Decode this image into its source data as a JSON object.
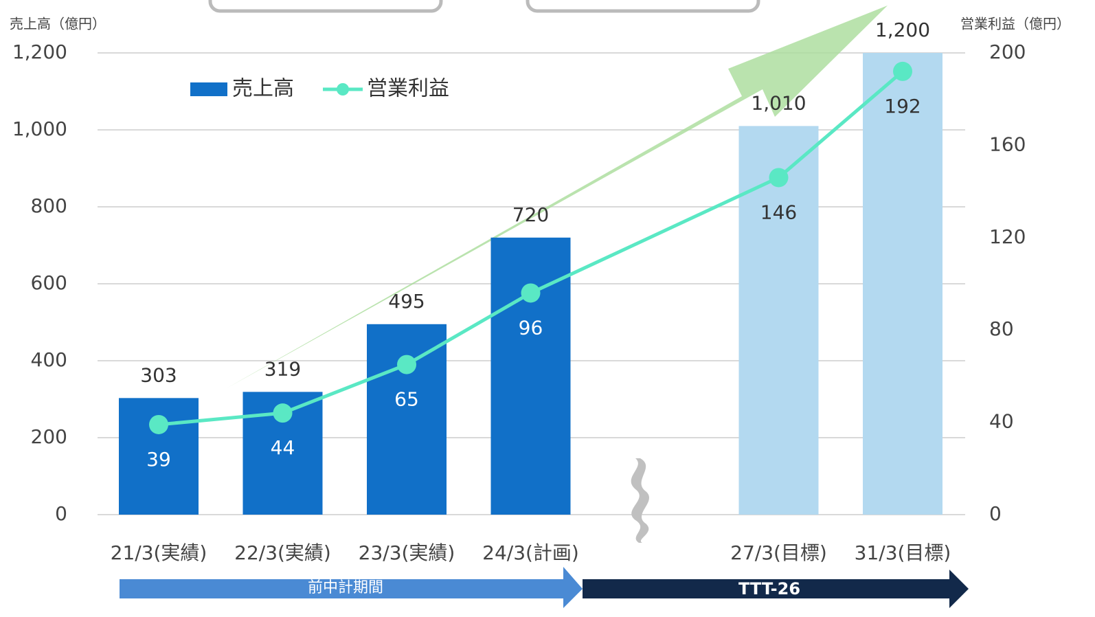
{
  "chart_data": {
    "type": "bar_line",
    "y_label": "売上高（億円）",
    "y2_label": "営業利益（億円）",
    "categories": [
      "21/3(実績)",
      "22/3(実績)",
      "23/3(実績)",
      "24/3(計画)",
      "27/3(目標)",
      "31/3(目標)"
    ],
    "series": [
      {
        "name": "売上高",
        "type": "bar",
        "color": "#1170c8",
        "colors": [
          "#1170c8",
          "#1170c8",
          "#1170c8",
          "#1170c8",
          "#b3d9f0",
          "#b3d9f0"
        ],
        "values": [
          303,
          319,
          495,
          720,
          1010,
          1200
        ],
        "value_labels": [
          "303",
          "319",
          "495",
          "720",
          "1,010",
          "1,200"
        ]
      },
      {
        "name": "営業利益",
        "type": "line",
        "axis": "y2",
        "color": "#5ae8c4",
        "values": [
          39,
          44,
          65,
          96,
          146,
          192
        ]
      }
    ],
    "ylim": [
      0,
      1200
    ],
    "yticks": [
      0,
      200,
      400,
      600,
      800,
      {
        "value": 1000,
        "label": "1,000"
      },
      {
        "value": 1200,
        "label": "1,200"
      }
    ],
    "y2lim": [
      0,
      200
    ],
    "y2ticks": [
      0,
      40,
      80,
      120,
      160,
      200
    ],
    "grid": true,
    "annotations": [
      "前中計期間",
      "TTT-26"
    ]
  }
}
